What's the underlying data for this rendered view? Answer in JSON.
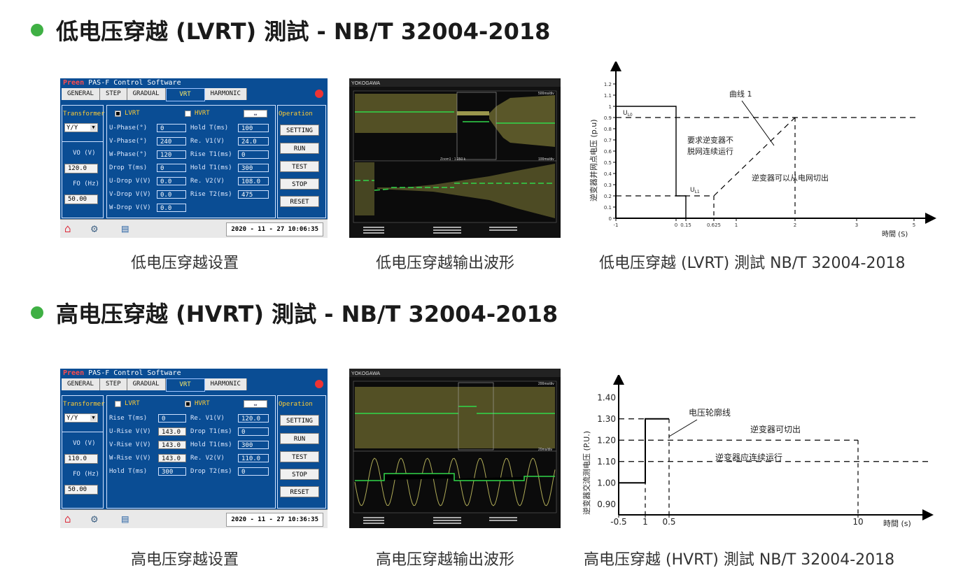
{
  "lvrt_section": {
    "heading": "低电压穿越 (LVRT) 測試 - NB/T 32004-2018",
    "captions": {
      "settings": "低电压穿越设置",
      "waveform": "低电压穿越输出波形",
      "chart": "低电压穿越 (LVRT) 測試  NB/T 32004-2018"
    },
    "software": {
      "brand": "Preen",
      "title": "PAS-F Control Software",
      "tabs": [
        "GENERAL",
        "STEP",
        "GRADUAL",
        "VRT",
        "HARMONIC"
      ],
      "active_tab": "VRT",
      "transformer_label": "Transformer",
      "transformer_value": "Y/Y",
      "vo_label": "VO  (V)",
      "vo_value": "120.0",
      "fo_label": "FO (Hz)",
      "fo_value": "50.00",
      "mode_lvrt": "LVRT",
      "mode_hvrt": "HVRT",
      "nav_arrow": "⇔",
      "operation_label": "Operation",
      "buttons": [
        "SETTING",
        "RUN",
        "TEST",
        "STOP",
        "RESET"
      ],
      "params_left": [
        {
          "label": "U-Phase(°)",
          "value": "0"
        },
        {
          "label": "V-Phase(°)",
          "value": "240"
        },
        {
          "label": "W-Phase(°)",
          "value": "120"
        },
        {
          "label": "Drop T(ms)",
          "value": "0"
        },
        {
          "label": "U-Drop V(V)",
          "value": "0.0"
        },
        {
          "label": "V-Drop V(V)",
          "value": "0.0"
        },
        {
          "label": "W-Drop V(V)",
          "value": "0.0"
        }
      ],
      "params_right": [
        {
          "label": "Hold T(ms)",
          "value": "100"
        },
        {
          "label": "Re. V1(V)",
          "value": "24.0"
        },
        {
          "label": "Rise T1(ms)",
          "value": "0"
        },
        {
          "label": "Hold T1(ms)",
          "value": "300"
        },
        {
          "label": "Re. V2(V)",
          "value": "108.0"
        },
        {
          "label": "Rise T2(ms)",
          "value": "475"
        }
      ],
      "datetime": "2020 - 11 - 27  10:06:35"
    },
    "scope": {
      "brand": "YOKOGAWA",
      "top_timebase": "500ms/div",
      "zoom_label": "Zoom1 : 1.250 k",
      "bottom_timebase": "100ms/div"
    }
  },
  "hvrt_section": {
    "heading": "高电压穿越 (HVRT) 測試 - NB/T 32004-2018",
    "captions": {
      "settings": "高电压穿越设置",
      "waveform": "高电压穿越输出波形",
      "chart": "高电压穿越 (HVRT) 測試 NB/T 32004-2018"
    },
    "software": {
      "brand": "Preen",
      "title": "PAS-F Control Software",
      "tabs": [
        "GENERAL",
        "STEP",
        "GRADUAL",
        "VRT",
        "HARMONIC"
      ],
      "active_tab": "VRT",
      "transformer_label": "Transformer",
      "transformer_value": "Y/Y",
      "vo_label": "VO  (V)",
      "vo_value": "110.0",
      "fo_label": "FO (Hz)",
      "fo_value": "50.00",
      "mode_lvrt": "LVRT",
      "mode_hvrt": "HVRT",
      "nav_arrow": "⇔",
      "operation_label": "Operation",
      "buttons": [
        "SETTING",
        "RUN",
        "TEST",
        "STOP",
        "RESET"
      ],
      "params_left": [
        {
          "label": "Rise  T(ms)",
          "value": "0"
        },
        {
          "label": "U-Rise V(V)",
          "value": "143.0"
        },
        {
          "label": "V-Rise V(V)",
          "value": "143.0"
        },
        {
          "label": "W-Rise V(V)",
          "value": "143.0"
        },
        {
          "label": "Hold T(ms)",
          "value": "300"
        }
      ],
      "params_right": [
        {
          "label": "Re. V1(V)",
          "value": "120.0"
        },
        {
          "label": "Drop T1(ms)",
          "value": "0"
        },
        {
          "label": "Hold T1(ms)",
          "value": "300"
        },
        {
          "label": "Re. V2(V)",
          "value": "110.0"
        },
        {
          "label": "Drop T2(ms)",
          "value": "0"
        }
      ],
      "datetime": "2020 - 11 - 27  10:36:35"
    },
    "scope": {
      "brand": "YOKOGAWA",
      "top_timebase": "200ms/div",
      "zoom_label": "",
      "bottom_timebase": "20ms/div"
    }
  },
  "colors": {
    "accent_green": "#3fb044",
    "panel_blue": "#0a4d94",
    "trace_yellow": "#d8d36a",
    "trace_green": "#31d84a"
  },
  "chart_data": [
    {
      "type": "line",
      "title": "低电压穿越 (LVRT) 測試  NB/T 32004-2018",
      "xlabel": "時間 (S)",
      "ylabel": "逆变器并网点电压 (p.u)",
      "x_ticks": [
        "-1",
        "0",
        "0.15",
        "0.625",
        "1",
        "2",
        "3",
        "5"
      ],
      "y_ticks": [
        "0",
        "0.1",
        "0.2",
        "0.3",
        "0.4",
        "0.5",
        "0.6",
        "0.7",
        "0.8",
        "0.9",
        "1",
        "1.1",
        "1.2"
      ],
      "annotations": {
        "curve_label": "曲线 1",
        "u_l0": "U",
        "u_l0_sub": "L0",
        "u_l1": "U",
        "u_l1_sub": "L1",
        "must_stay_connected": [
          "要求逆变器不",
          "脱网连续运行"
        ],
        "may_disconnect": "逆变器可以从电网切出"
      },
      "series": [
        {
          "name": "voltage profile",
          "x": [
            -1,
            0,
            0,
            0.15,
            0.15
          ],
          "y": [
            1.0,
            1.0,
            0.2,
            0.2,
            0
          ]
        },
        {
          "name": "recovery boundary",
          "x": [
            0.625,
            2
          ],
          "y": [
            0.2,
            0.9
          ]
        }
      ],
      "reference_lines": {
        "u_l0": 0.9,
        "u_l1": 0.2
      }
    },
    {
      "type": "line",
      "title": "高电压穿越 (HVRT) 測試 NB/T 32004-2018",
      "xlabel": "時間 (s)",
      "ylabel": "逆变器交流测电压 (P.U.)",
      "x_ticks": [
        "-0.5",
        "1",
        "0.5",
        "10"
      ],
      "y_ticks": [
        "0.90",
        "1.00",
        "1.10",
        "1.20",
        "1.30",
        "1.40"
      ],
      "annotations": {
        "profile_label": "电压轮廓线",
        "may_disconnect": "逆变器可切出",
        "must_stay_connected": "逆变器应连续运行"
      },
      "series": [
        {
          "name": "voltage profile",
          "x": [
            "-0.5",
            "1",
            "1",
            "0.5"
          ],
          "y": [
            1.0,
            1.0,
            1.3,
            1.3
          ]
        }
      ],
      "reference_lines": {
        "upper": 1.3,
        "middle": 1.2,
        "lower": 1.1
      }
    }
  ]
}
